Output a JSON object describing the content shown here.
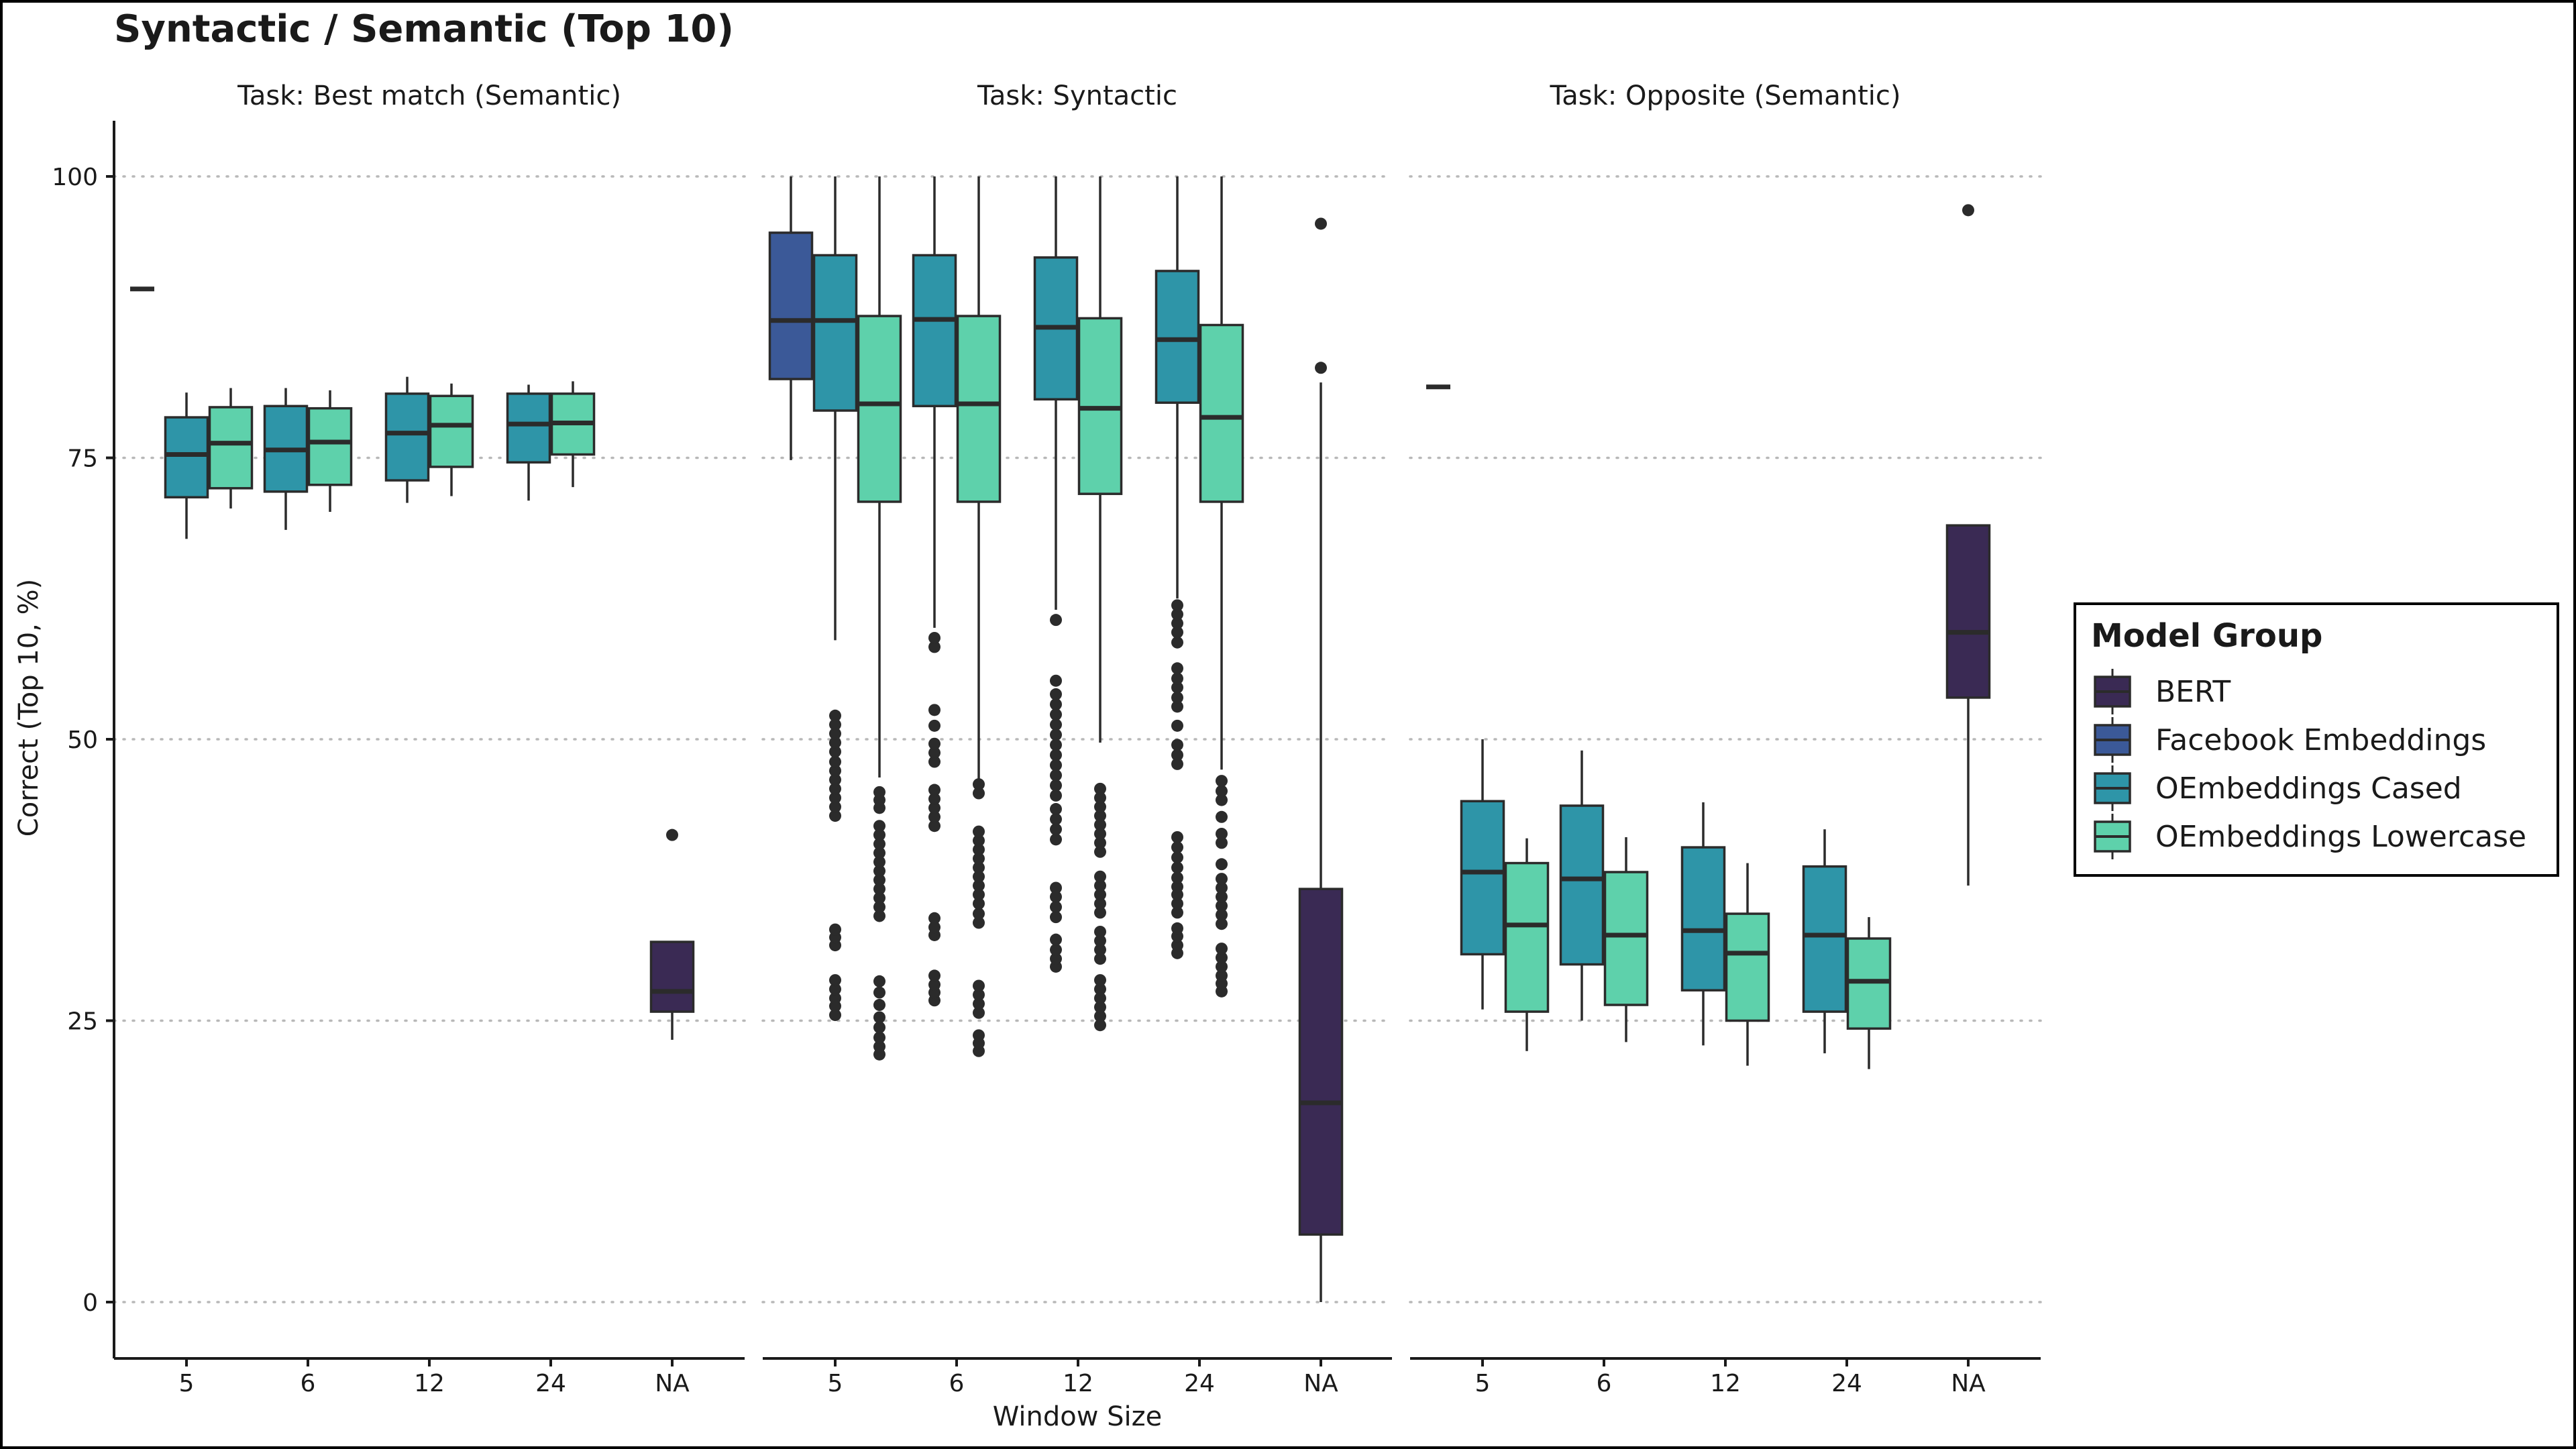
{
  "chart_data": {
    "type": "boxplot",
    "title": "Syntactic / Semantic (Top 10)",
    "xlabel": "Window Size",
    "ylabel": "Correct (Top 10, %)",
    "ylim": [
      -5,
      105
    ],
    "yticks": [
      0,
      25,
      50,
      75,
      100
    ],
    "grid": "horizontal dotted",
    "categories": [
      "5",
      "6",
      "12",
      "24",
      "NA"
    ],
    "legend": {
      "title": "Model Group",
      "placement": "right",
      "entries": [
        {
          "name": "BERT",
          "color": "#3a2a54"
        },
        {
          "name": "Facebook Embeddings",
          "color": "#3b5998"
        },
        {
          "name": "OEmbeddings Cased",
          "color": "#2e95a8"
        },
        {
          "name": "OEmbeddings Lowercase",
          "color": "#5ed1ab"
        }
      ]
    },
    "panels": [
      {
        "title": "Task: Best match (Semantic)",
        "boxes": [
          {
            "category": "5",
            "group": "Facebook Embeddings",
            "slot": 0,
            "q1": 90,
            "median": 90,
            "q3": 90,
            "whisker_low": 90,
            "whisker_high": 90,
            "outliers": []
          },
          {
            "category": "5",
            "group": "OEmbeddings Cased",
            "slot": 1,
            "q1": 71.5,
            "median": 75.3,
            "q3": 78.6,
            "whisker_low": 67.8,
            "whisker_high": 80.8,
            "outliers": []
          },
          {
            "category": "5",
            "group": "OEmbeddings Lowercase",
            "slot": 2,
            "q1": 72.3,
            "median": 76.3,
            "q3": 79.5,
            "whisker_low": 70.5,
            "whisker_high": 81.2,
            "outliers": []
          },
          {
            "category": "6",
            "group": "OEmbeddings Cased",
            "slot": 0,
            "q1": 72.0,
            "median": 75.7,
            "q3": 79.6,
            "whisker_low": 68.6,
            "whisker_high": 81.2,
            "outliers": []
          },
          {
            "category": "6",
            "group": "OEmbeddings Lowercase",
            "slot": 1,
            "q1": 72.6,
            "median": 76.4,
            "q3": 79.4,
            "whisker_low": 70.2,
            "whisker_high": 81.0,
            "outliers": []
          },
          {
            "category": "12",
            "group": "OEmbeddings Cased",
            "slot": 0,
            "q1": 73.0,
            "median": 77.2,
            "q3": 80.7,
            "whisker_low": 71.0,
            "whisker_high": 82.2,
            "outliers": []
          },
          {
            "category": "12",
            "group": "OEmbeddings Lowercase",
            "slot": 1,
            "q1": 74.2,
            "median": 77.9,
            "q3": 80.5,
            "whisker_low": 71.6,
            "whisker_high": 81.6,
            "outliers": []
          },
          {
            "category": "24",
            "group": "OEmbeddings Cased",
            "slot": 0,
            "q1": 74.6,
            "median": 78.0,
            "q3": 80.7,
            "whisker_low": 71.2,
            "whisker_high": 81.5,
            "outliers": []
          },
          {
            "category": "24",
            "group": "OEmbeddings Lowercase",
            "slot": 1,
            "q1": 75.3,
            "median": 78.1,
            "q3": 80.7,
            "whisker_low": 72.4,
            "whisker_high": 81.8,
            "outliers": []
          },
          {
            "category": "NA",
            "group": "BERT",
            "slot": 0,
            "q1": 25.8,
            "median": 27.6,
            "q3": 32.0,
            "whisker_low": 23.3,
            "whisker_high": 32.0,
            "outliers": [
              41.5
            ]
          }
        ]
      },
      {
        "title": "Task: Syntactic",
        "boxes": [
          {
            "category": "5",
            "group": "Facebook Embeddings",
            "slot": 0,
            "q1": 82.0,
            "median": 87.2,
            "q3": 95.0,
            "whisker_low": 74.8,
            "whisker_high": 100,
            "outliers": []
          },
          {
            "category": "5",
            "group": "OEmbeddings Cased",
            "slot": 1,
            "q1": 79.2,
            "median": 87.2,
            "q3": 93.0,
            "whisker_low": 58.8,
            "whisker_high": 100,
            "outliers": [
              25.5,
              26.3,
              27.0,
              27.8,
              28.6,
              31.7,
              32.4,
              33.1,
              43.2,
              44.0,
              44.8,
              45.6,
              46.4,
              47.2,
              48.0,
              48.9,
              49.7,
              50.5,
              51.3,
              52.1
            ]
          },
          {
            "category": "5",
            "group": "OEmbeddings Lowercase",
            "slot": 2,
            "q1": 71.1,
            "median": 79.8,
            "q3": 87.6,
            "whisker_low": 46.6,
            "whisker_high": 100,
            "outliers": [
              22.0,
              22.7,
              23.5,
              24.4,
              25.3,
              26.4,
              27.5,
              28.5,
              34.3,
              35.1,
              35.9,
              36.7,
              37.5,
              38.3,
              39.1,
              39.9,
              40.7,
              41.5,
              42.3,
              43.9,
              44.6,
              45.3
            ]
          },
          {
            "category": "6",
            "group": "OEmbeddings Cased",
            "slot": 0,
            "q1": 79.6,
            "median": 87.3,
            "q3": 93.0,
            "whisker_low": 59.9,
            "whisker_high": 100,
            "outliers": [
              26.8,
              27.5,
              28.2,
              29.0,
              32.6,
              33.3,
              34.1,
              42.3,
              43.1,
              43.9,
              44.7,
              45.5,
              48.0,
              48.8,
              49.6,
              51.2,
              52.6,
              58.2,
              59.0
            ]
          },
          {
            "category": "6",
            "group": "OEmbeddings Lowercase",
            "slot": 1,
            "q1": 71.1,
            "median": 79.8,
            "q3": 87.6,
            "whisker_low": 46.5,
            "whisker_high": 100,
            "outliers": [
              22.3,
              23.0,
              23.7,
              25.7,
              26.5,
              27.3,
              28.1,
              33.7,
              34.5,
              35.4,
              36.2,
              37.0,
              37.8,
              38.6,
              39.4,
              40.2,
              41.0,
              41.8,
              45.2,
              46.0
            ]
          },
          {
            "category": "12",
            "group": "OEmbeddings Cased",
            "slot": 0,
            "q1": 80.2,
            "median": 86.6,
            "q3": 92.8,
            "whisker_low": 61.5,
            "whisker_high": 100,
            "outliers": [
              29.8,
              30.5,
              31.3,
              32.2,
              34.2,
              35.1,
              36.0,
              36.8,
              41.1,
              42.0,
              42.9,
              43.8,
              45.0,
              45.9,
              46.8,
              47.7,
              48.6,
              49.5,
              50.4,
              51.3,
              52.2,
              53.1,
              54.0,
              55.2,
              60.6
            ]
          },
          {
            "category": "12",
            "group": "OEmbeddings Lowercase",
            "slot": 1,
            "q1": 71.8,
            "median": 79.4,
            "q3": 87.4,
            "whisker_low": 49.7,
            "whisker_high": 100,
            "outliers": [
              24.6,
              25.4,
              26.2,
              27.0,
              27.8,
              28.6,
              30.5,
              31.3,
              32.1,
              32.9,
              34.6,
              35.4,
              36.2,
              37.0,
              37.8,
              40.0,
              40.8,
              41.6,
              42.4,
              43.2,
              44.0,
              44.8,
              45.6
            ]
          },
          {
            "category": "24",
            "group": "OEmbeddings Cased",
            "slot": 0,
            "q1": 79.9,
            "median": 85.5,
            "q3": 91.6,
            "whisker_low": 62.5,
            "whisker_high": 100,
            "outliers": [
              31.0,
              31.7,
              32.5,
              33.2,
              34.6,
              35.4,
              36.2,
              36.9,
              37.7,
              38.6,
              39.5,
              40.4,
              41.3,
              47.8,
              48.6,
              49.5,
              51.2,
              52.9,
              53.7,
              54.6,
              55.4,
              56.3,
              58.6,
              59.5,
              60.3,
              61.1,
              61.9
            ]
          },
          {
            "category": "24",
            "group": "OEmbeddings Lowercase",
            "slot": 1,
            "q1": 71.1,
            "median": 78.6,
            "q3": 86.8,
            "whisker_low": 47.3,
            "whisker_high": 100,
            "outliers": [
              27.6,
              28.3,
              29.0,
              29.8,
              30.6,
              31.4,
              33.6,
              34.4,
              35.2,
              36.0,
              36.8,
              37.6,
              38.9,
              40.8,
              41.6,
              43.1,
              44.6,
              45.4,
              46.3
            ]
          },
          {
            "category": "NA",
            "group": "BERT",
            "slot": 0,
            "q1": 6.0,
            "median": 17.7,
            "q3": 36.7,
            "whisker_low": 0,
            "whisker_high": 81.7,
            "outliers": [
              83.0,
              95.8
            ]
          }
        ]
      },
      {
        "title": "Task: Opposite (Semantic)",
        "boxes": [
          {
            "category": "5",
            "group": "Facebook Embeddings",
            "slot": 0,
            "q1": 81.3,
            "median": 81.3,
            "q3": 81.3,
            "whisker_low": 81.3,
            "whisker_high": 81.3,
            "outliers": []
          },
          {
            "category": "5",
            "group": "OEmbeddings Cased",
            "slot": 1,
            "q1": 30.9,
            "median": 38.2,
            "q3": 44.5,
            "whisker_low": 26.0,
            "whisker_high": 50.0,
            "outliers": []
          },
          {
            "category": "5",
            "group": "OEmbeddings Lowercase",
            "slot": 2,
            "q1": 25.8,
            "median": 33.5,
            "q3": 39.0,
            "whisker_low": 22.3,
            "whisker_high": 41.2,
            "outliers": []
          },
          {
            "category": "6",
            "group": "OEmbeddings Cased",
            "slot": 0,
            "q1": 30.0,
            "median": 37.6,
            "q3": 44.1,
            "whisker_low": 25.0,
            "whisker_high": 49.0,
            "outliers": []
          },
          {
            "category": "6",
            "group": "OEmbeddings Lowercase",
            "slot": 1,
            "q1": 26.4,
            "median": 32.6,
            "q3": 38.2,
            "whisker_low": 23.1,
            "whisker_high": 41.3,
            "outliers": []
          },
          {
            "category": "12",
            "group": "OEmbeddings Cased",
            "slot": 0,
            "q1": 27.7,
            "median": 33.0,
            "q3": 40.4,
            "whisker_low": 22.8,
            "whisker_high": 44.4,
            "outliers": []
          },
          {
            "category": "12",
            "group": "OEmbeddings Lowercase",
            "slot": 1,
            "q1": 25.0,
            "median": 31.0,
            "q3": 34.5,
            "whisker_low": 21.0,
            "whisker_high": 39.0,
            "outliers": []
          },
          {
            "category": "24",
            "group": "OEmbeddings Cased",
            "slot": 0,
            "q1": 25.8,
            "median": 32.6,
            "q3": 38.7,
            "whisker_low": 22.1,
            "whisker_high": 42.0,
            "outliers": []
          },
          {
            "category": "24",
            "group": "OEmbeddings Lowercase",
            "slot": 1,
            "q1": 24.3,
            "median": 28.5,
            "q3": 32.3,
            "whisker_low": 20.7,
            "whisker_high": 34.2,
            "outliers": []
          },
          {
            "category": "NA",
            "group": "BERT",
            "slot": 0,
            "q1": 53.7,
            "median": 59.5,
            "q3": 69.0,
            "whisker_low": 37.0,
            "whisker_high": 69.0,
            "outliers": [
              97.0
            ]
          }
        ]
      }
    ]
  }
}
